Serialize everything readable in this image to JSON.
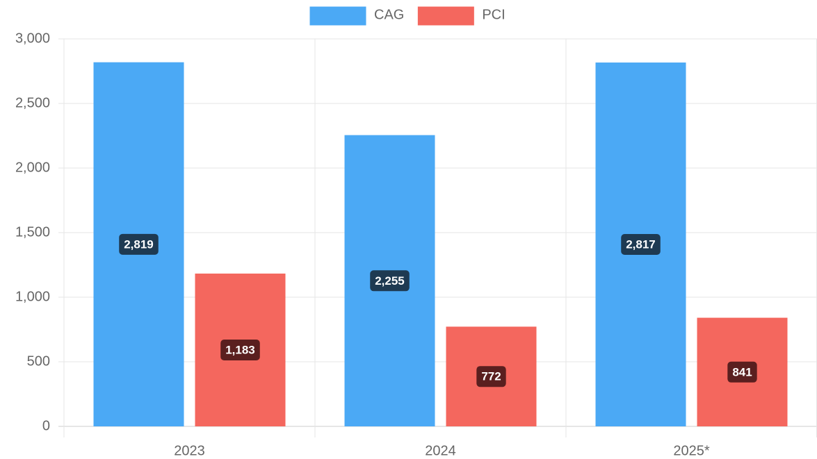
{
  "chart_data": {
    "type": "bar",
    "categories": [
      "2023",
      "2024",
      "2025*"
    ],
    "series": [
      {
        "name": "CAG",
        "color": "#4ba9f5",
        "label_color": "#1e3a52",
        "values": [
          2819,
          2255,
          2817
        ],
        "value_labels": [
          "2,819",
          "2,255",
          "2,817"
        ]
      },
      {
        "name": "PCI",
        "color": "#f4675e",
        "label_color": "#5a1f1f",
        "values": [
          1183,
          772,
          841
        ],
        "value_labels": [
          "1,183",
          "772",
          "841"
        ]
      }
    ],
    "ylim": [
      0,
      3000
    ],
    "yticks": [
      0,
      500,
      {
        "value": 1000,
        "label": "1,000"
      },
      {
        "value": 1500,
        "label": "1,500"
      },
      {
        "value": 2000,
        "label": "2,000"
      },
      {
        "value": 2500,
        "label": "2,500"
      },
      {
        "value": 3000,
        "label": "3,000"
      }
    ],
    "grid": true,
    "legend": "top"
  }
}
